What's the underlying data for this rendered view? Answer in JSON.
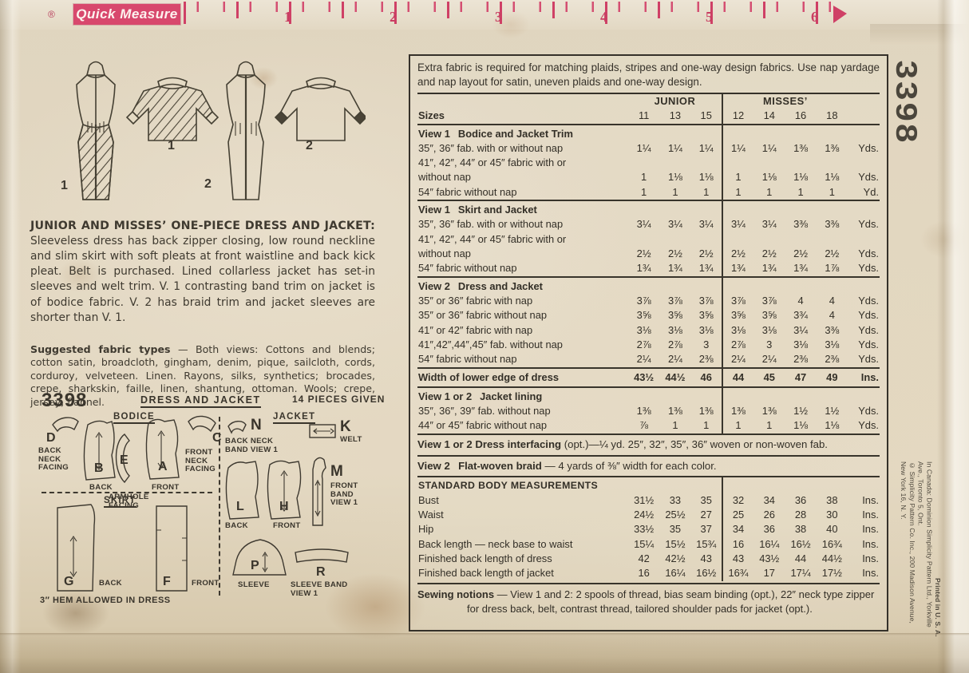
{
  "ruler": {
    "reg": "®",
    "brand": "Quick Measure",
    "numbers": [
      "1",
      "2",
      "3",
      "4",
      "5",
      "6"
    ]
  },
  "illustrations": {
    "labels": [
      "1",
      "1",
      "2",
      "2"
    ]
  },
  "description": {
    "heading": "JUNIOR AND MISSES’ ONE-PIECE DRESS AND JACKET:",
    "body": " Sleeveless dress has back zipper closing, low round neckline and slim skirt with soft pleats at front waistline and back kick pleat. Belt is purchased. Lined collarless jacket has set-in sleeves and welt trim. V. 1 contrasting band trim on jacket is of bodice fabric. V. 2 has braid trim and jacket sleeves are shorter than V. 1."
  },
  "fabrics": {
    "heading": "Suggested fabric types",
    "body": " — Both views: Cottons and blends; cotton satin, broadcloth, gingham, denim, pique, sailcloth, cords, corduroy, velveteen. Linen. Rayons, silks, synthetics; brocades, crepe, sharkskin, faille, linen, shantung, ottoman. Wools; crepe, jersey, flannel."
  },
  "pieces": {
    "number": "3398",
    "title": "DRESS AND JACKET",
    "count": "14 PIECES GIVEN",
    "groups": {
      "bodice": "BODICE",
      "jacket": "JACKET",
      "skirt": "SKIRT"
    },
    "items": [
      {
        "letter": "D",
        "caption": "BACK NECK FACING"
      },
      {
        "letter": "B",
        "caption": "BACK"
      },
      {
        "letter": "E",
        "caption": "ARMHOLE FACING"
      },
      {
        "letter": "A",
        "caption": "FRONT"
      },
      {
        "letter": "C",
        "caption": "FRONT NECK FACING"
      },
      {
        "letter": "N",
        "caption": "BACK NECK BAND VIEW 1"
      },
      {
        "letter": "K",
        "caption": "WELT"
      },
      {
        "letter": "L",
        "caption": "BACK"
      },
      {
        "letter": "H",
        "caption": "FRONT"
      },
      {
        "letter": "M",
        "caption": "FRONT BAND VIEW 1"
      },
      {
        "letter": "P",
        "caption": "SLEEVE"
      },
      {
        "letter": "R",
        "caption": "SLEEVE BAND VIEW 1"
      },
      {
        "letter": "G",
        "caption": "BACK"
      },
      {
        "letter": "F",
        "caption": "FRONT"
      }
    ],
    "hem_note": "3″ HEM ALLOWED IN DRESS"
  },
  "table": {
    "intro_1": "Extra fabric is required for matching plaids, stripes and one-way design fabrics. Use nap yardage and nap layout for satin, uneven plaids and one-way design.",
    "junior_header": "JUNIOR",
    "misses_header": "MISSES’",
    "sizes_label": "Sizes",
    "size_values": [
      "11",
      "13",
      "15",
      "12",
      "14",
      "16",
      "18"
    ],
    "rows": [
      {
        "type": "section",
        "label": "View 1  Bodice and Jacket Trim"
      },
      {
        "type": "data",
        "label": "35″, 36″ fab. with or without nap",
        "values": [
          "1¼",
          "1¼",
          "1¼",
          "1¼",
          "1¼",
          "1⅜",
          "1⅜"
        ],
        "unit": "Yds."
      },
      {
        "type": "cont",
        "label": "41″, 42″, 44″ or 45″ fabric with or"
      },
      {
        "type": "data",
        "label": "without nap",
        "values": [
          "1",
          "1⅛",
          "1⅛",
          "1",
          "1⅛",
          "1⅛",
          "1⅛"
        ],
        "unit": "Yds."
      },
      {
        "type": "data",
        "label": "54″ fabric without nap",
        "values": [
          "1",
          "1",
          "1",
          "1",
          "1",
          "1",
          "1"
        ],
        "unit": "Yd."
      },
      {
        "type": "section",
        "label": "View 1  Skirt and Jacket"
      },
      {
        "type": "data",
        "label": "35″, 36″ fab. with or without nap",
        "values": [
          "3¼",
          "3¼",
          "3¼",
          "3¼",
          "3¼",
          "3⅜",
          "3⅜"
        ],
        "unit": "Yds."
      },
      {
        "type": "cont",
        "label": "41″, 42″, 44″ or 45″ fabric with or"
      },
      {
        "type": "data",
        "label": "without nap",
        "values": [
          "2½",
          "2½",
          "2½",
          "2½",
          "2½",
          "2½",
          "2½"
        ],
        "unit": "Yds."
      },
      {
        "type": "data",
        "label": "54″ fabric without nap",
        "values": [
          "1¾",
          "1¾",
          "1¾",
          "1¾",
          "1¾",
          "1¾",
          "1⅞"
        ],
        "unit": "Yds."
      },
      {
        "type": "section",
        "label": "View 2  Dress and Jacket"
      },
      {
        "type": "data",
        "label": "35″ or 36″ fabric with nap",
        "values": [
          "3⅞",
          "3⅞",
          "3⅞",
          "3⅞",
          "3⅞",
          "4",
          "4"
        ],
        "unit": "Yds."
      },
      {
        "type": "data",
        "label": "35″ or 36″ fabric without nap",
        "values": [
          "3⅝",
          "3⅝",
          "3⅝",
          "3⅝",
          "3⅝",
          "3¾",
          "4"
        ],
        "unit": "Yds."
      },
      {
        "type": "data",
        "label": "41″ or 42″ fabric with nap",
        "values": [
          "3⅛",
          "3⅛",
          "3⅛",
          "3⅛",
          "3⅛",
          "3¼",
          "3⅜"
        ],
        "unit": "Yds."
      },
      {
        "type": "data",
        "label": "41″,42″,44″,45″ fab. without nap",
        "values": [
          "2⅞",
          "2⅞",
          "3",
          "2⅞",
          "3",
          "3⅛",
          "3⅛"
        ],
        "unit": "Yds."
      },
      {
        "type": "data",
        "label": "54″ fabric without nap",
        "values": [
          "2¼",
          "2¼",
          "2⅜",
          "2¼",
          "2¼",
          "2⅜",
          "2⅜"
        ],
        "unit": "Yds."
      },
      {
        "type": "edge",
        "label": "Width of lower edge of dress",
        "values": [
          "43½",
          "44½",
          "46",
          "44",
          "45",
          "47",
          "49"
        ],
        "unit": "Ins."
      },
      {
        "type": "section",
        "label": "View 1 or 2  Jacket lining"
      },
      {
        "type": "data",
        "label": "35″, 36″, 39″ fab. without nap",
        "values": [
          "1⅜",
          "1⅜",
          "1⅜",
          "1⅜",
          "1⅜",
          "1½",
          "1½"
        ],
        "unit": "Yds."
      },
      {
        "type": "data",
        "label": "44″ or 45″ fabric without nap",
        "values": [
          "⅞",
          "1",
          "1",
          "1",
          "1",
          "1⅛",
          "1⅛"
        ],
        "unit": "Yds."
      },
      {
        "type": "full",
        "bold": "View 1 or 2 Dress interfacing",
        "rest": " (opt.)—¼ yd. 25″, 32″, 35″, 36″ woven or non-woven fab."
      },
      {
        "type": "full",
        "bold": "View 2  Flat-woven braid",
        "rest": " — 4 yards of ⅜″ width for each color."
      },
      {
        "type": "subhead",
        "label": "STANDARD BODY MEASUREMENTS"
      },
      {
        "type": "data",
        "label": "Bust",
        "values": [
          "31½",
          "33",
          "35",
          "32",
          "34",
          "36",
          "38"
        ],
        "unit": "Ins."
      },
      {
        "type": "data",
        "label": "Waist",
        "values": [
          "24½",
          "25½",
          "27",
          "25",
          "26",
          "28",
          "30"
        ],
        "unit": "Ins."
      },
      {
        "type": "data",
        "label": "Hip",
        "values": [
          "33½",
          "35",
          "37",
          "34",
          "36",
          "38",
          "40"
        ],
        "unit": "Ins."
      },
      {
        "type": "data",
        "label": "Back length — neck base to waist",
        "values": [
          "15¼",
          "15½",
          "15¾",
          "16",
          "16¼",
          "16½",
          "16¾"
        ],
        "unit": "Ins."
      },
      {
        "type": "data",
        "label": "Finished back length of dress",
        "values": [
          "42",
          "42½",
          "43",
          "43",
          "43½",
          "44",
          "44½"
        ],
        "unit": "Ins."
      },
      {
        "type": "data",
        "label": "Finished back length of jacket",
        "values": [
          "16",
          "16¼",
          "16½",
          "16¾",
          "17",
          "17¼",
          "17½"
        ],
        "unit": "Ins."
      }
    ],
    "notions_bold": "Sewing notions",
    "notions_rest": " — View 1 and 2: 2 spools of thread, bias seam binding (opt.), 22″ neck type zipper for dress back, belt, contrast thread, tailored shoulder pads for jacket (opt.)."
  },
  "side": {
    "pattern_number": "3398",
    "copyright_us": "© Simplicity Pattern Co. Inc., 200 Madison Avenue, New York 16, N. Y.",
    "copyright_canada": "In Canada: Dominion Simplicity Pattern Ltd., Yorkville Ave., Toronto 5, Ont.",
    "printed": "Printed in U. S. A."
  }
}
